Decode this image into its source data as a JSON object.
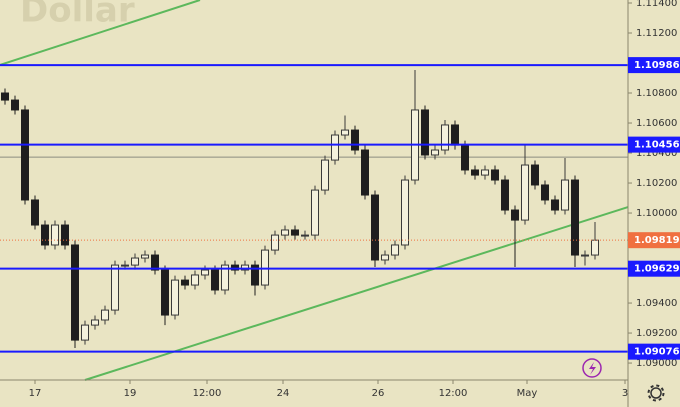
{
  "chart_data": {
    "type": "candlestick",
    "title": "Dollar",
    "open": [
      1.108,
      1.10753,
      1.10687,
      1.10087,
      1.0992,
      1.09787,
      1.0992,
      1.09787,
      1.09153,
      1.09253,
      1.09287,
      1.09353,
      1.09653,
      1.09653,
      1.097,
      1.0972,
      1.0962,
      1.0932,
      1.09553,
      1.0952,
      1.09587,
      1.0962,
      1.09487,
      1.09653,
      1.0962,
      1.09653,
      1.0952,
      1.09753,
      1.09853,
      1.09887,
      1.09853,
      1.09853,
      1.10153,
      1.10353,
      1.1052,
      1.10553,
      1.1042,
      1.1012,
      1.09687,
      1.0972,
      1.09787,
      1.1022,
      1.10687,
      1.10387,
      1.1042,
      1.10587,
      1.10453,
      1.10287,
      1.10253,
      1.10287,
      1.1022,
      1.1002,
      1.09953,
      1.1032,
      1.10187,
      1.10087,
      1.1002,
      1.1022,
      1.0972,
      1.0972
    ],
    "high": [
      1.1083,
      1.10783,
      1.10717,
      1.10117,
      1.0995,
      1.0995,
      1.0995,
      1.09817,
      1.09283,
      1.09317,
      1.09383,
      1.09683,
      1.09683,
      1.0973,
      1.0975,
      1.0975,
      1.0965,
      1.09583,
      1.09583,
      1.09617,
      1.0965,
      1.0965,
      1.09683,
      1.09683,
      1.09683,
      1.09683,
      1.09783,
      1.09883,
      1.09917,
      1.09917,
      1.09883,
      1.10183,
      1.10383,
      1.1055,
      1.1065,
      1.10583,
      1.1045,
      1.1015,
      1.0975,
      1.09817,
      1.1025,
      1.10953,
      1.10717,
      1.1045,
      1.1062,
      1.10617,
      1.10483,
      1.10317,
      1.10317,
      1.10317,
      1.1025,
      1.1005,
      1.10453,
      1.1035,
      1.10217,
      1.10117,
      1.10367,
      1.1025,
      1.0975,
      1.0994
    ],
    "low": [
      1.10723,
      1.10657,
      1.10057,
      1.0989,
      1.09757,
      1.09757,
      1.09757,
      1.091,
      1.09123,
      1.09223,
      1.09257,
      1.09323,
      1.09623,
      1.09623,
      1.0967,
      1.0959,
      1.09253,
      1.0929,
      1.0949,
      1.0949,
      1.09557,
      1.09457,
      1.09457,
      1.0959,
      1.0959,
      1.0945,
      1.0949,
      1.09723,
      1.09823,
      1.09823,
      1.09823,
      1.09823,
      1.10123,
      1.10323,
      1.1049,
      1.1039,
      1.1009,
      1.0964,
      1.09657,
      1.0969,
      1.09757,
      1.1019,
      1.10357,
      1.10357,
      1.1039,
      1.10423,
      1.10257,
      1.10223,
      1.10223,
      1.1019,
      1.0999,
      1.0964,
      1.09923,
      1.10157,
      1.10057,
      1.0999,
      1.0999,
      1.0964,
      1.0965,
      1.0969
    ],
    "close": [
      1.10753,
      1.10687,
      1.10087,
      1.0992,
      1.09787,
      1.0992,
      1.09787,
      1.09153,
      1.09253,
      1.09287,
      1.09353,
      1.09653,
      1.09653,
      1.097,
      1.0972,
      1.0962,
      1.0932,
      1.09553,
      1.0952,
      1.09587,
      1.0962,
      1.09487,
      1.09653,
      1.0962,
      1.09653,
      1.0952,
      1.09753,
      1.09853,
      1.09887,
      1.09853,
      1.09853,
      1.10153,
      1.10353,
      1.1052,
      1.10553,
      1.1042,
      1.1012,
      1.09687,
      1.0972,
      1.09787,
      1.1022,
      1.10687,
      1.10387,
      1.1042,
      1.10587,
      1.10453,
      1.10287,
      1.10253,
      1.10287,
      1.1022,
      1.1002,
      1.09953,
      1.1032,
      1.10187,
      1.10087,
      1.1002,
      1.1022,
      1.0972,
      1.0972,
      1.09819
    ],
    "up_color": "#3a3a3a",
    "down_color": "#1e1e1e",
    "last_price_color": "#f07040",
    "xlim": [
      -0.5,
      62.3
    ],
    "xticks": [
      {
        "value": 3.0,
        "label": "17"
      },
      {
        "value": 12.5,
        "label": "19"
      },
      {
        "value": 20.2,
        "label": "12:00"
      },
      {
        "value": 27.8,
        "label": "24"
      },
      {
        "value": 37.3,
        "label": "26"
      },
      {
        "value": 44.8,
        "label": "12:00"
      },
      {
        "value": 52.2,
        "label": "May"
      },
      {
        "value": 62.0,
        "label": "3"
      }
    ],
    "ylim": [
      1.08887,
      1.1142
    ],
    "yticks": [
      {
        "value": 1.114,
        "label": "1.11400"
      },
      {
        "value": 1.112,
        "label": "1.11200"
      },
      {
        "value": 1.11,
        "label": "1.11000"
      },
      {
        "value": 1.108,
        "label": "1.10800"
      },
      {
        "value": 1.106,
        "label": "1.10600"
      },
      {
        "value": 1.104,
        "label": "1.10400"
      },
      {
        "value": 1.102,
        "label": "1.10200"
      },
      {
        "value": 1.1,
        "label": "1.10000"
      },
      {
        "value": 1.098,
        "label": "1.09800"
      },
      {
        "value": 1.096,
        "label": "1.09600"
      },
      {
        "value": 1.094,
        "label": "1.09400"
      },
      {
        "value": 1.092,
        "label": "1.09200"
      },
      {
        "value": 1.09,
        "label": "1.09000"
      }
    ],
    "levels": [
      {
        "value": 1.10986,
        "color": "#1a1aff"
      },
      {
        "value": 1.10456,
        "color": "#1a1aff"
      },
      {
        "value": 1.09629,
        "color": "#1a1aff"
      },
      {
        "value": 1.09076,
        "color": "#1a1aff"
      }
    ],
    "grey_level": 1.10373,
    "trendlines": [
      {
        "x": [
          -0.5,
          19.5
        ],
        "y": [
          1.10987,
          1.1142
        ],
        "color": "#5cb85c"
      },
      {
        "x": [
          8.0,
          62.3
        ],
        "y": [
          1.08887,
          1.1004
        ],
        "color": "#5cb85c"
      }
    ]
  }
}
